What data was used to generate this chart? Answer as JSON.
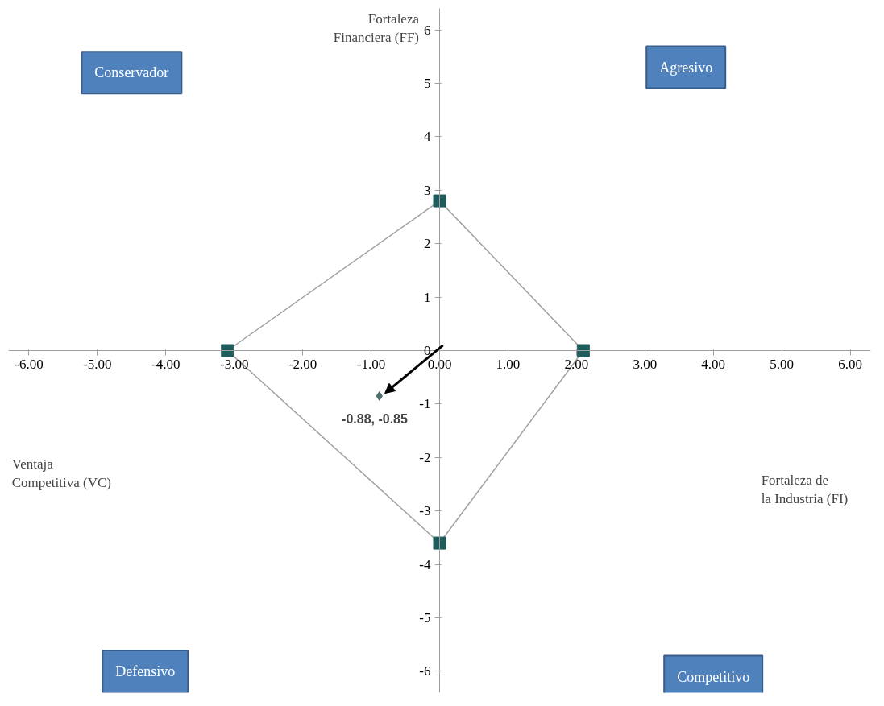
{
  "chart_data": {
    "type": "line",
    "xlabel": "Fortaleza de la Industria (FI)",
    "ylabel": "Fortaleza Financiera (FF)",
    "xlim": [
      -6.3,
      6.3
    ],
    "ylim": [
      -6.4,
      6.4
    ],
    "xticks": [
      {
        "value": -6,
        "label": "-6.00"
      },
      {
        "value": -5,
        "label": "-5.00"
      },
      {
        "value": -4,
        "label": "-4.00"
      },
      {
        "value": -3,
        "label": "-3.00"
      },
      {
        "value": -2,
        "label": "-2.00"
      },
      {
        "value": -1,
        "label": "-1.00"
      },
      {
        "value": 0,
        "label": "0.00"
      },
      {
        "value": 1,
        "label": "1.00"
      },
      {
        "value": 2,
        "label": "2.00"
      },
      {
        "value": 3,
        "label": "3.00"
      },
      {
        "value": 4,
        "label": "4.00"
      },
      {
        "value": 5,
        "label": "5.00"
      },
      {
        "value": 6,
        "label": "6.00"
      }
    ],
    "yticks": [
      -6,
      -5,
      -4,
      -3,
      -2,
      -1,
      0,
      1,
      2,
      3,
      4,
      5,
      6
    ],
    "grid": false,
    "marker": "none",
    "series": [
      {
        "color": "#a0a0a0",
        "x": [
          -3.1,
          0,
          2.1
        ],
        "values": [
          0,
          2.8,
          0
        ]
      },
      {
        "color": "#a0a0a0",
        "x": [
          -3.1,
          0,
          2.1
        ],
        "values": [
          0,
          -3.6,
          0
        ]
      },
      {
        "type": "scatter",
        "marker": "square",
        "color": "#1f5c5c",
        "x": [
          0,
          2.1,
          0,
          -3.1
        ],
        "values": [
          2.8,
          0,
          -3.6,
          0
        ]
      },
      {
        "type": "scatter",
        "marker": "diamond",
        "color": "#4f6f6f",
        "x": [
          -0.88
        ],
        "values": [
          -0.85
        ]
      }
    ],
    "annotations": [
      "Conservador",
      "Agresivo",
      "Defensivo",
      "Competitivo",
      "Ventaja Competitiva (VC)",
      {
        "text": "-0.88, -0.85",
        "x": -0.88,
        "y": -0.85
      }
    ]
  }
}
